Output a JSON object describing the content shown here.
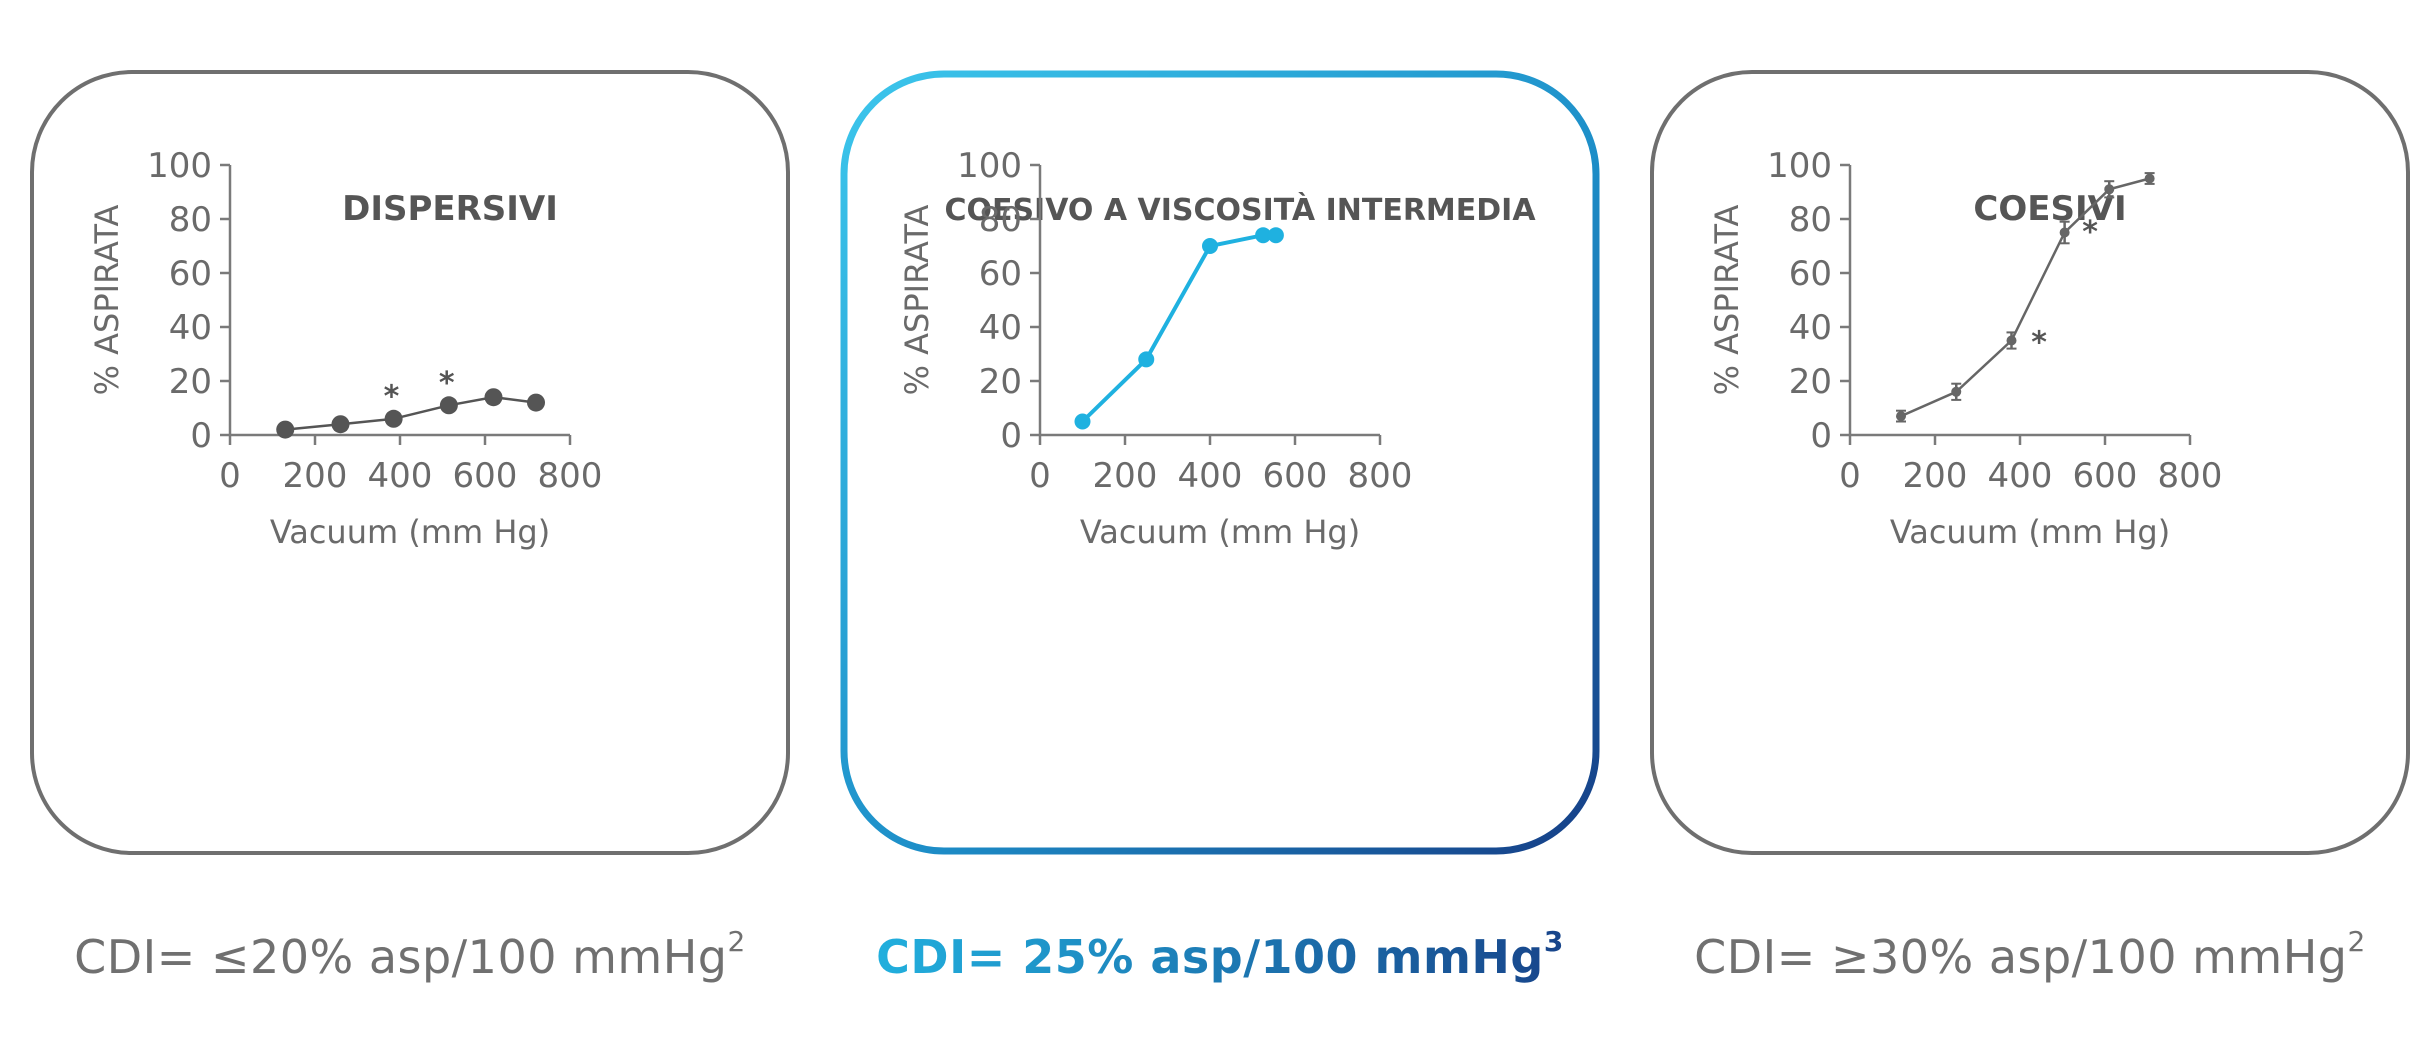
{
  "chart_data": [
    {
      "type": "line",
      "title": "DISPERSIVI",
      "xlabel": "Vacuum (mm Hg)",
      "ylabel": "% ASPIRATA",
      "xlim": [
        0,
        800
      ],
      "ylim": [
        0,
        100
      ],
      "xticks": [
        "0",
        "200",
        "400",
        "600",
        "800"
      ],
      "yticks": [
        "0",
        "20",
        "40",
        "60",
        "80",
        "100"
      ],
      "series": [
        {
          "name": "DISPERSIVI",
          "color": "#555555",
          "x": [
            130,
            260,
            385,
            515,
            620,
            720
          ],
          "y": [
            2,
            4,
            6,
            11,
            14,
            12
          ]
        }
      ],
      "annotations": [
        {
          "text": "*",
          "x": 380,
          "y": 15
        },
        {
          "text": "*",
          "x": 510,
          "y": 20
        }
      ],
      "caption": "CDI= ≤20% asp/100 mmHg",
      "caption_ref": "2"
    },
    {
      "type": "line",
      "title": "COESIVO A VISCOSITÀ INTERMEDIA",
      "xlabel": "Vacuum (mm Hg)",
      "ylabel": "% ASPIRATA",
      "xlim": [
        0,
        800
      ],
      "ylim": [
        0,
        100
      ],
      "xticks": [
        "0",
        "200",
        "400",
        "600",
        "800"
      ],
      "yticks": [
        "0",
        "20",
        "40",
        "60",
        "80",
        "100"
      ],
      "series": [
        {
          "name": "COESIVO A VISCOSITÀ INTERMEDIA",
          "color": "#1fb1e0",
          "x": [
            100,
            250,
            400,
            525,
            555
          ],
          "y": [
            5,
            28,
            70,
            74,
            74
          ]
        }
      ],
      "annotations": [],
      "caption": "CDI= 25% asp/100 mmHg",
      "caption_ref": "3"
    },
    {
      "type": "line",
      "title": "COESIVI",
      "xlabel": "Vacuum (mm Hg)",
      "ylabel": "% ASPIRATA",
      "xlim": [
        0,
        800
      ],
      "ylim": [
        0,
        100
      ],
      "xticks": [
        "0",
        "200",
        "400",
        "600",
        "800"
      ],
      "yticks": [
        "0",
        "20",
        "40",
        "60",
        "80",
        "100"
      ],
      "series": [
        {
          "name": "COESIVI",
          "color": "#666666",
          "x": [
            120,
            250,
            380,
            505,
            610,
            705
          ],
          "y": [
            7,
            16,
            35,
            75,
            91,
            95
          ],
          "err": [
            2,
            3,
            3,
            4,
            3,
            2
          ]
        }
      ],
      "annotations": [
        {
          "text": "*",
          "x": 445,
          "y": 35
        },
        {
          "text": "*",
          "x": 565,
          "y": 76
        }
      ],
      "caption": "CDI= ≥30% asp/100 mmHg",
      "caption_ref": "2"
    }
  ]
}
